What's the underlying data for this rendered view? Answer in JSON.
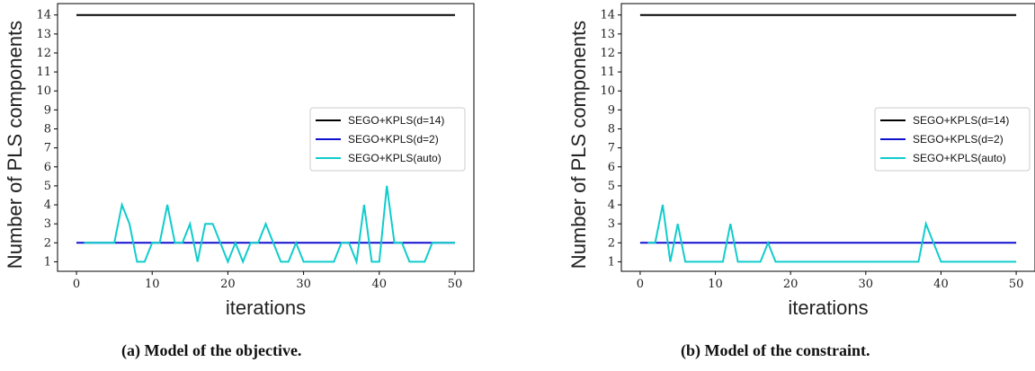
{
  "chart_data": [
    {
      "type": "line",
      "caption": "(a) Model of the objective.",
      "xlabel": "iterations",
      "ylabel": "Number of PLS components",
      "xlim": [
        -2.5,
        52.5
      ],
      "ylim": [
        0.5,
        14.6
      ],
      "xticks": [
        0,
        10,
        20,
        30,
        40,
        50
      ],
      "yticks": [
        1,
        2,
        3,
        4,
        5,
        6,
        7,
        8,
        9,
        10,
        11,
        12,
        13,
        14
      ],
      "legend_position": "center-right",
      "series": [
        {
          "name": "SEGO+KPLS(d=14)",
          "color": "#000000",
          "x": [
            0,
            50
          ],
          "y": [
            14,
            14
          ]
        },
        {
          "name": "SEGO+KPLS(d=2)",
          "color": "#1010d0",
          "x": [
            0,
            50
          ],
          "y": [
            2,
            2
          ]
        },
        {
          "name": "SEGO+KPLS(auto)",
          "color": "#11cccc",
          "x": [
            1,
            2,
            3,
            4,
            5,
            6,
            7,
            8,
            9,
            10,
            11,
            12,
            13,
            14,
            15,
            16,
            17,
            18,
            19,
            20,
            21,
            22,
            23,
            24,
            25,
            26,
            27,
            28,
            29,
            30,
            31,
            32,
            33,
            34,
            35,
            36,
            37,
            38,
            39,
            40,
            41,
            42,
            43,
            44,
            45,
            46,
            47,
            48,
            49,
            50
          ],
          "y": [
            2,
            2,
            2,
            2,
            2,
            4,
            3,
            1,
            1,
            2,
            2,
            4,
            2,
            2,
            3,
            1,
            3,
            3,
            2,
            1,
            2,
            1,
            2,
            2,
            3,
            2,
            1,
            1,
            2,
            1,
            1,
            1,
            1,
            1,
            2,
            2,
            1,
            4,
            1,
            1,
            5,
            2,
            2,
            1,
            1,
            1,
            2,
            2,
            2,
            2
          ]
        }
      ]
    },
    {
      "type": "line",
      "caption": "(b) Model of the constraint.",
      "xlabel": "iterations",
      "ylabel": "Number of PLS components",
      "xlim": [
        -2.5,
        52.5
      ],
      "ylim": [
        0.5,
        14.6
      ],
      "xticks": [
        0,
        10,
        20,
        30,
        40,
        50
      ],
      "yticks": [
        1,
        2,
        3,
        4,
        5,
        6,
        7,
        8,
        9,
        10,
        11,
        12,
        13,
        14
      ],
      "legend_position": "center-right",
      "series": [
        {
          "name": "SEGO+KPLS(d=14)",
          "color": "#000000",
          "x": [
            0,
            50
          ],
          "y": [
            14,
            14
          ]
        },
        {
          "name": "SEGO+KPLS(d=2)",
          "color": "#1010d0",
          "x": [
            0,
            50
          ],
          "y": [
            2,
            2
          ]
        },
        {
          "name": "SEGO+KPLS(auto)",
          "color": "#11cccc",
          "x": [
            1,
            2,
            3,
            4,
            5,
            6,
            7,
            8,
            9,
            10,
            11,
            12,
            13,
            14,
            15,
            16,
            17,
            18,
            19,
            20,
            21,
            22,
            23,
            24,
            25,
            26,
            27,
            28,
            29,
            30,
            31,
            32,
            33,
            34,
            35,
            36,
            37,
            38,
            39,
            40,
            41,
            42,
            43,
            44,
            45,
            46,
            47,
            48,
            49,
            50
          ],
          "y": [
            2,
            2,
            4,
            1,
            3,
            1,
            1,
            1,
            1,
            1,
            1,
            3,
            1,
            1,
            1,
            1,
            2,
            1,
            1,
            1,
            1,
            1,
            1,
            1,
            1,
            1,
            1,
            1,
            1,
            1,
            1,
            1,
            1,
            1,
            1,
            1,
            1,
            3,
            2,
            1,
            1,
            1,
            1,
            1,
            1,
            1,
            1,
            1,
            1,
            1
          ]
        }
      ]
    }
  ]
}
